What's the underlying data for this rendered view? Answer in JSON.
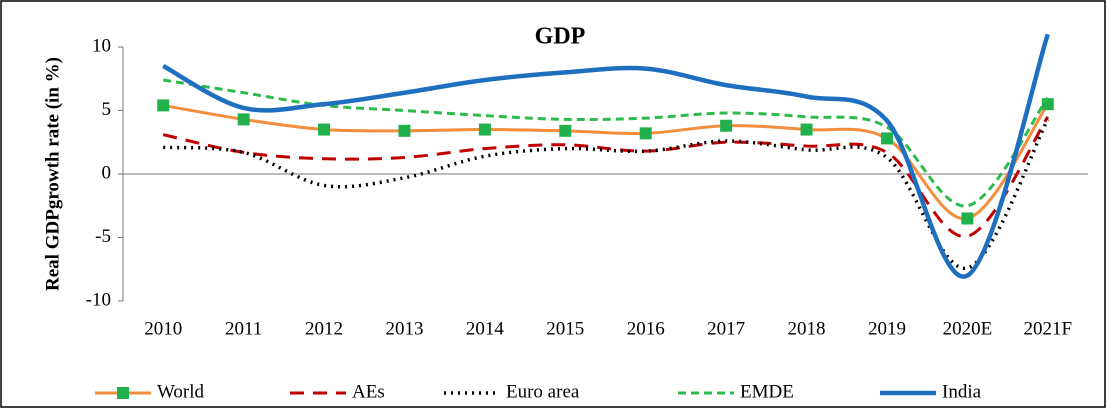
{
  "chart_data": {
    "type": "line",
    "title": "GDP",
    "y_label": "Real GDPgrowth rate (in %)",
    "categories": [
      "2010",
      "2011",
      "2012",
      "2013",
      "2014",
      "2015",
      "2016",
      "2017",
      "2018",
      "2019",
      "2020E",
      "2021F"
    ],
    "ylim": [
      -10,
      10
    ],
    "yticks": [
      -10,
      -5,
      0,
      5,
      10
    ],
    "grid": false,
    "legend": "bottom",
    "smooth": true,
    "series": [
      {
        "name": "World",
        "color": "#f28e3c",
        "line_style": "solid",
        "marker": "square",
        "marker_color": "#21b04b",
        "values": [
          5.4,
          4.3,
          3.5,
          3.4,
          3.5,
          3.4,
          3.2,
          3.8,
          3.5,
          2.8,
          -3.5,
          5.5
        ]
      },
      {
        "name": "AEs",
        "color": "#c00000",
        "line_style": "dashed",
        "values": [
          3.1,
          1.7,
          1.2,
          1.3,
          2.0,
          2.3,
          1.8,
          2.5,
          2.2,
          1.7,
          -4.9,
          4.5
        ]
      },
      {
        "name": "Euro area",
        "color": "#000000",
        "line_style": "dotted",
        "values": [
          2.1,
          1.7,
          -0.9,
          -0.3,
          1.4,
          2.0,
          1.8,
          2.6,
          1.9,
          1.3,
          -7.4,
          4.3
        ]
      },
      {
        "name": "EMDE",
        "color": "#2dbb4e",
        "line_style": "short-dashed",
        "values": [
          7.4,
          6.4,
          5.4,
          5.0,
          4.6,
          4.3,
          4.4,
          4.8,
          4.5,
          3.7,
          -2.5,
          6.0
        ]
      },
      {
        "name": "India",
        "color": "#1f6fc0",
        "line_style": "thick",
        "values": [
          8.5,
          5.2,
          5.5,
          6.4,
          7.4,
          8.0,
          8.3,
          7.0,
          6.1,
          4.2,
          -8.0,
          11.0
        ]
      }
    ]
  }
}
